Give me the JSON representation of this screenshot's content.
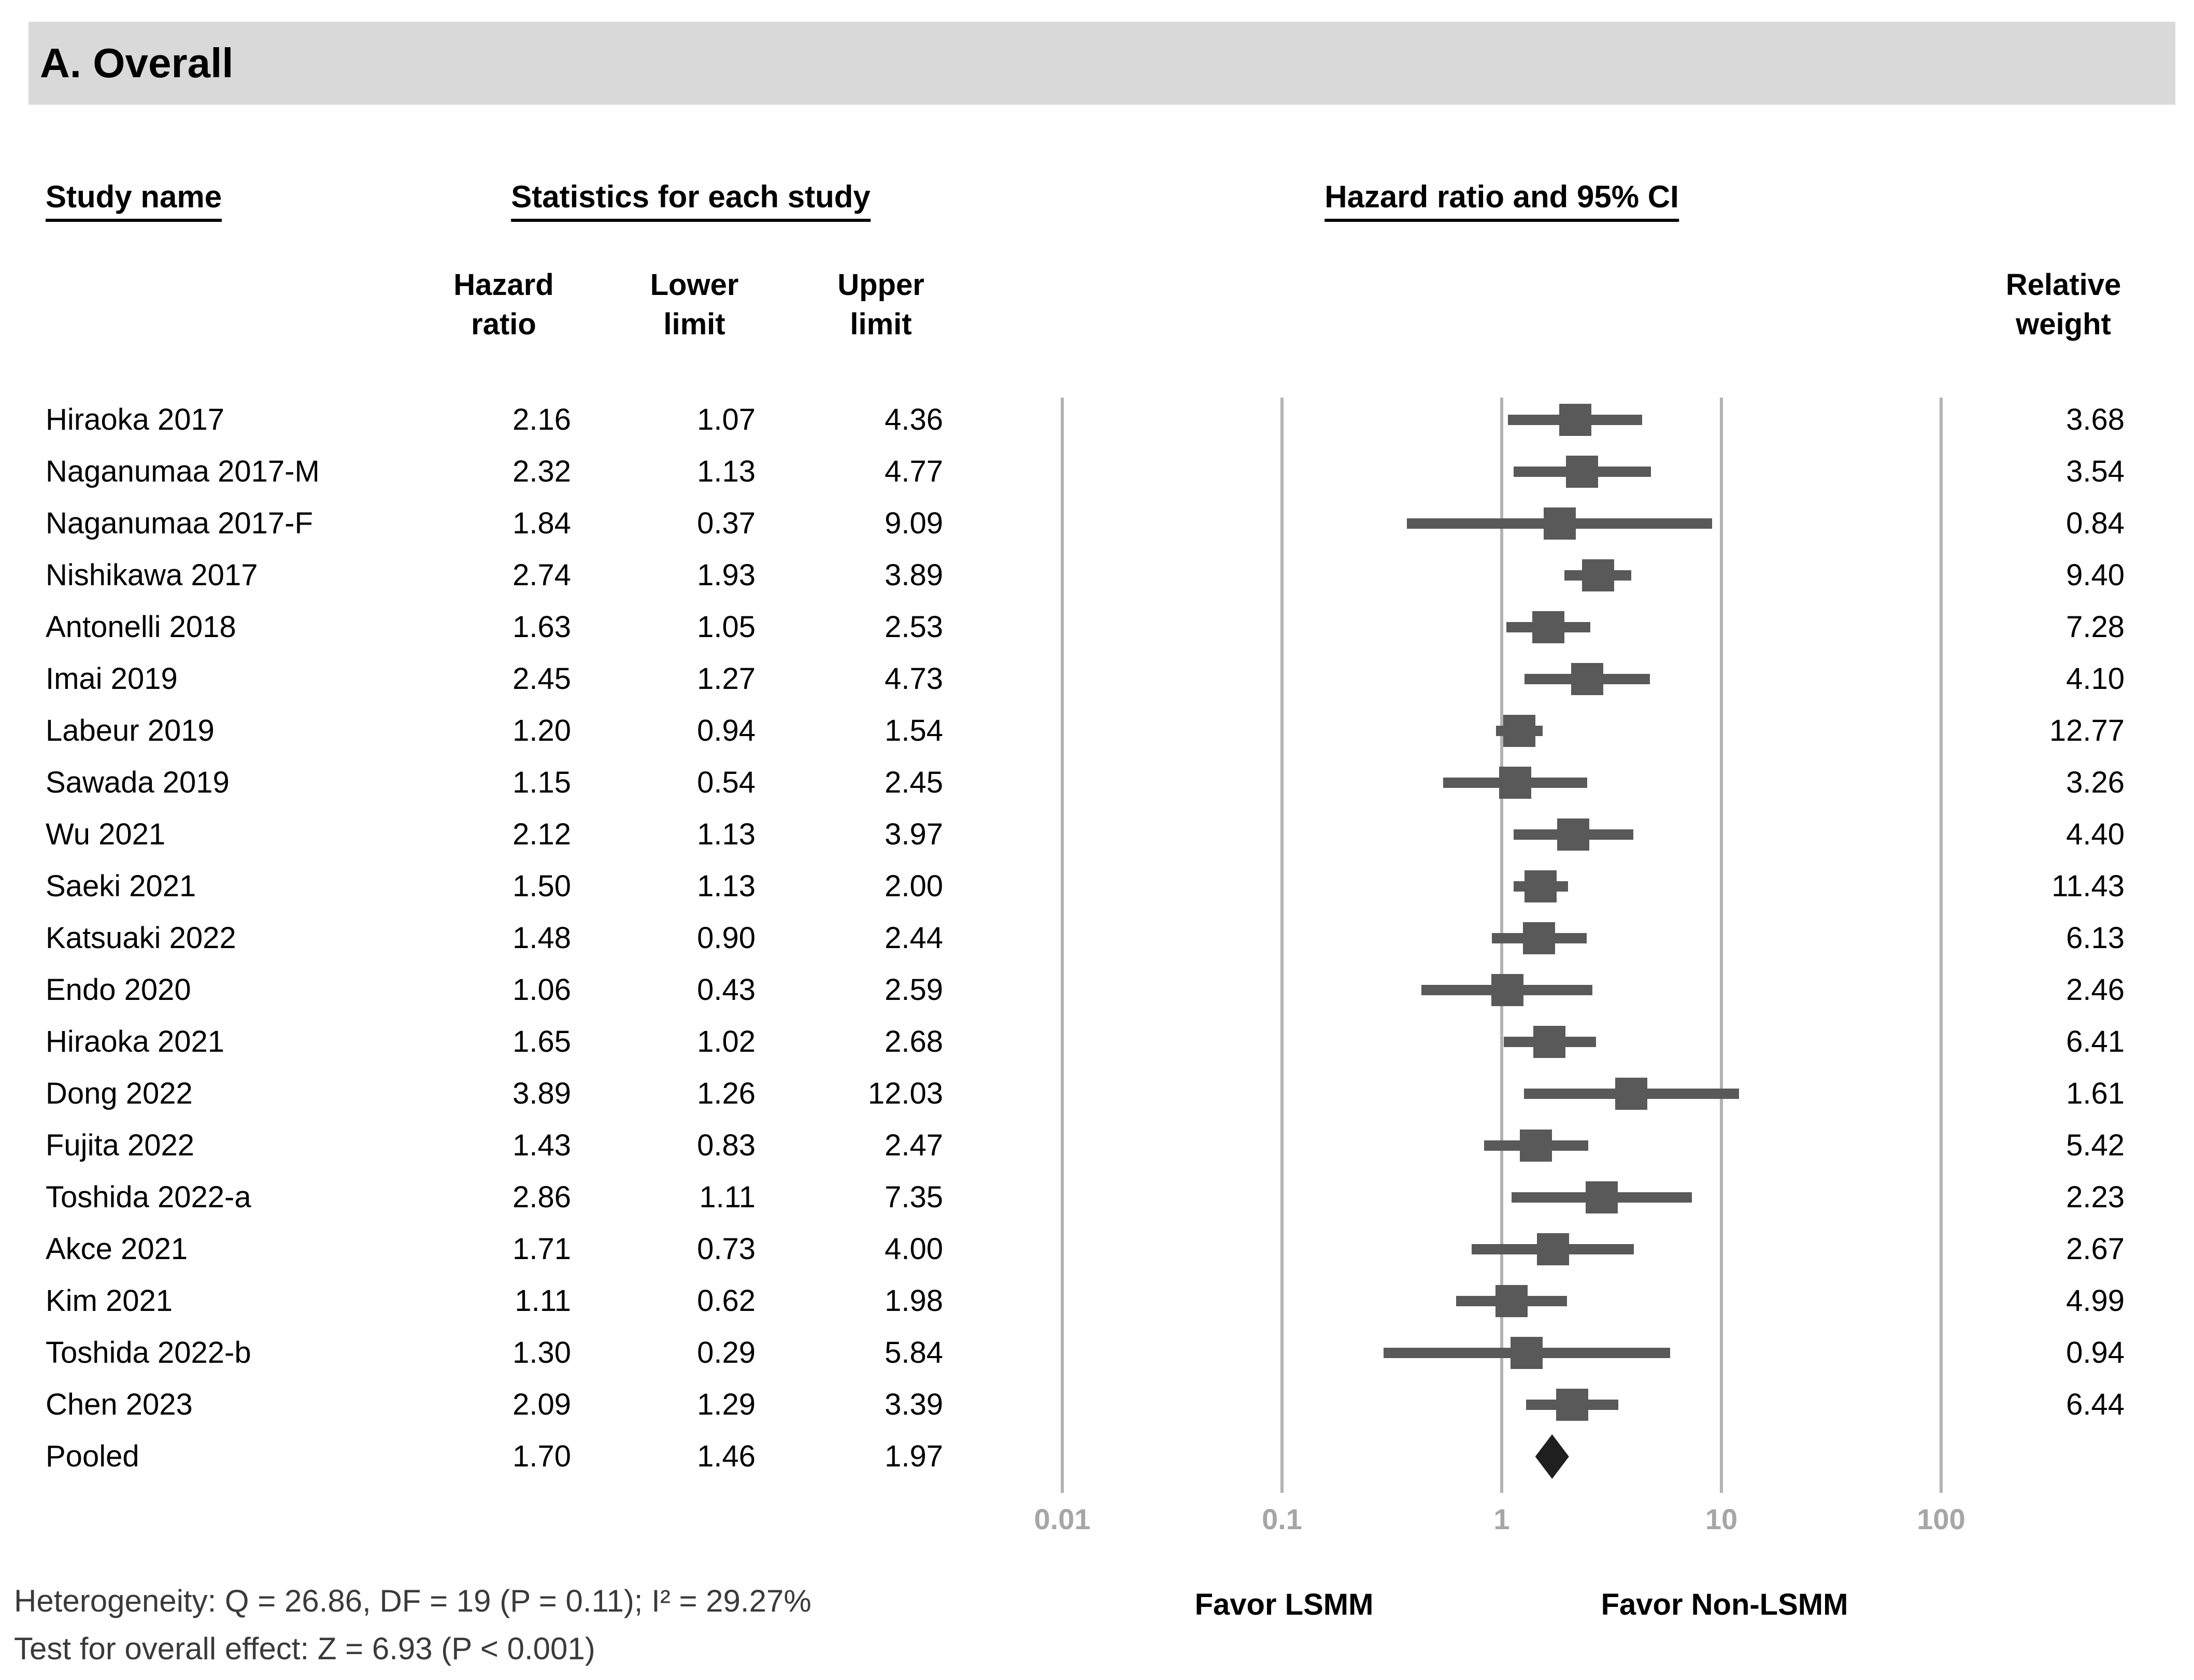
{
  "title": "A. Overall",
  "headers": {
    "study": "Study name",
    "stats_group": "Statistics for each study",
    "plot_group": "Hazard ratio and 95% CI",
    "hazard_ratio": {
      "line1": "Hazard",
      "line2": "ratio"
    },
    "lower_limit": {
      "line1": "Lower",
      "line2": "limit"
    },
    "upper_limit": {
      "line1": "Upper",
      "line2": "limit"
    },
    "relative_weight": {
      "line1": "Relative",
      "line2": "weight"
    }
  },
  "chart_data": {
    "type": "forest",
    "x_scale": "log10",
    "x_range": [
      0.01,
      100
    ],
    "x_ticks": [
      0.01,
      0.1,
      1,
      10,
      100
    ],
    "x_tick_labels": [
      "0.01",
      "0.1",
      "1",
      "10",
      "100"
    ],
    "columns": [
      "Study name",
      "Hazard ratio",
      "Lower limit",
      "Upper limit",
      "Relative weight"
    ],
    "studies": [
      {
        "name": "Hiraoka 2017",
        "hr": 2.16,
        "lower": 1.07,
        "upper": 4.36,
        "weight": 3.68
      },
      {
        "name": "Naganumaa 2017-M",
        "hr": 2.32,
        "lower": 1.13,
        "upper": 4.77,
        "weight": 3.54
      },
      {
        "name": "Naganumaa 2017-F",
        "hr": 1.84,
        "lower": 0.37,
        "upper": 9.09,
        "weight": 0.84
      },
      {
        "name": "Nishikawa 2017",
        "hr": 2.74,
        "lower": 1.93,
        "upper": 3.89,
        "weight": 9.4
      },
      {
        "name": "Antonelli 2018",
        "hr": 1.63,
        "lower": 1.05,
        "upper": 2.53,
        "weight": 7.28
      },
      {
        "name": "Imai 2019",
        "hr": 2.45,
        "lower": 1.27,
        "upper": 4.73,
        "weight": 4.1
      },
      {
        "name": "Labeur 2019",
        "hr": 1.2,
        "lower": 0.94,
        "upper": 1.54,
        "weight": 12.77
      },
      {
        "name": "Sawada 2019",
        "hr": 1.15,
        "lower": 0.54,
        "upper": 2.45,
        "weight": 3.26
      },
      {
        "name": "Wu 2021",
        "hr": 2.12,
        "lower": 1.13,
        "upper": 3.97,
        "weight": 4.4
      },
      {
        "name": "Saeki 2021",
        "hr": 1.5,
        "lower": 1.13,
        "upper": 2.0,
        "weight": 11.43
      },
      {
        "name": "Katsuaki 2022",
        "hr": 1.48,
        "lower": 0.9,
        "upper": 2.44,
        "weight": 6.13
      },
      {
        "name": "Endo 2020",
        "hr": 1.06,
        "lower": 0.43,
        "upper": 2.59,
        "weight": 2.46
      },
      {
        "name": "Hiraoka 2021",
        "hr": 1.65,
        "lower": 1.02,
        "upper": 2.68,
        "weight": 6.41
      },
      {
        "name": "Dong 2022",
        "hr": 3.89,
        "lower": 1.26,
        "upper": 12.03,
        "weight": 1.61
      },
      {
        "name": "Fujita 2022",
        "hr": 1.43,
        "lower": 0.83,
        "upper": 2.47,
        "weight": 5.42
      },
      {
        "name": "Toshida 2022-a",
        "hr": 2.86,
        "lower": 1.11,
        "upper": 7.35,
        "weight": 2.23
      },
      {
        "name": "Akce 2021",
        "hr": 1.71,
        "lower": 0.73,
        "upper": 4.0,
        "weight": 2.67
      },
      {
        "name": "Kim 2021",
        "hr": 1.11,
        "lower": 0.62,
        "upper": 1.98,
        "weight": 4.99
      },
      {
        "name": "Toshida 2022-b",
        "hr": 1.3,
        "lower": 0.29,
        "upper": 5.84,
        "weight": 0.94
      },
      {
        "name": "Chen 2023",
        "hr": 2.09,
        "lower": 1.29,
        "upper": 3.39,
        "weight": 6.44
      }
    ],
    "pooled": {
      "name": "Pooled",
      "hr": 1.7,
      "lower": 1.46,
      "upper": 1.97
    },
    "favor_left": "Favor LSMM",
    "favor_right": "Favor Non-LSMM",
    "legend_position": "none",
    "grid": "vertical-log-decades"
  },
  "footer": {
    "heterogeneity": "Heterogeneity: Q = 26.86, DF = 19 (P = 0.11); I² = 29.27%",
    "overall_effect": "Test for overall effect: Z = 6.93 (P < 0.001)"
  },
  "colors": {
    "title_bar_bg": "#d9d9d9",
    "marker": "#595959",
    "diamond": "#1f1f1f",
    "gridline": "#b3b3b3",
    "tick_label": "#a6a6a6",
    "footer_text": "#3a3a3a"
  }
}
